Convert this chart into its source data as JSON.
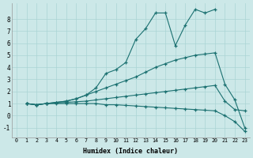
{
  "bg_color": "#cce8e8",
  "grid_color": "#aad4d4",
  "line_color": "#1a7070",
  "xlabel": "Humidex (Indice chaleur)",
  "xlim": [
    -0.5,
    23.5
  ],
  "ylim": [
    -1.8,
    9.3
  ],
  "yticks": [
    -1,
    0,
    1,
    2,
    3,
    4,
    5,
    6,
    7,
    8
  ],
  "xticks": [
    0,
    1,
    2,
    3,
    4,
    5,
    6,
    7,
    8,
    9,
    10,
    11,
    12,
    13,
    14,
    15,
    16,
    17,
    18,
    19,
    20,
    21,
    22,
    23
  ],
  "lines": [
    {
      "x": [
        1,
        2,
        3,
        4,
        5,
        6,
        7,
        8,
        9,
        10,
        11,
        12,
        13,
        14,
        15,
        16,
        17,
        18,
        19,
        20
      ],
      "y": [
        1,
        0.9,
        1.0,
        1.1,
        1.2,
        1.4,
        1.7,
        2.3,
        3.5,
        3.8,
        4.4,
        6.3,
        7.2,
        8.5,
        8.5,
        5.8,
        7.5,
        8.8,
        8.5,
        8.8
      ]
    },
    {
      "x": [
        1,
        2,
        3,
        4,
        5,
        6,
        7,
        8,
        9,
        10,
        11,
        12,
        13,
        14,
        15,
        16,
        17,
        18,
        19,
        20,
        21,
        22,
        23
      ],
      "y": [
        1,
        0.9,
        1.0,
        1.1,
        1.2,
        1.4,
        1.7,
        2.0,
        2.3,
        2.6,
        2.9,
        3.2,
        3.6,
        4.0,
        4.3,
        4.6,
        4.8,
        5.0,
        5.1,
        5.2,
        2.6,
        1.3,
        -1.0
      ]
    },
    {
      "x": [
        1,
        2,
        3,
        4,
        5,
        6,
        7,
        8,
        9,
        10,
        11,
        12,
        13,
        14,
        15,
        16,
        17,
        18,
        19,
        20,
        21,
        22,
        23
      ],
      "y": [
        1,
        0.9,
        1.0,
        1.05,
        1.1,
        1.15,
        1.2,
        1.3,
        1.4,
        1.5,
        1.6,
        1.7,
        1.8,
        1.9,
        2.0,
        2.1,
        2.2,
        2.3,
        2.4,
        2.5,
        1.2,
        0.5,
        0.4
      ]
    },
    {
      "x": [
        1,
        2,
        3,
        4,
        5,
        6,
        7,
        8,
        9,
        10,
        11,
        12,
        13,
        14,
        15,
        16,
        17,
        18,
        19,
        20,
        21,
        22,
        23
      ],
      "y": [
        1,
        0.9,
        1.0,
        1.0,
        1.0,
        1.0,
        1.0,
        1.0,
        0.9,
        0.9,
        0.85,
        0.8,
        0.75,
        0.7,
        0.65,
        0.6,
        0.55,
        0.5,
        0.45,
        0.4,
        0.0,
        -0.5,
        -1.3
      ]
    }
  ]
}
